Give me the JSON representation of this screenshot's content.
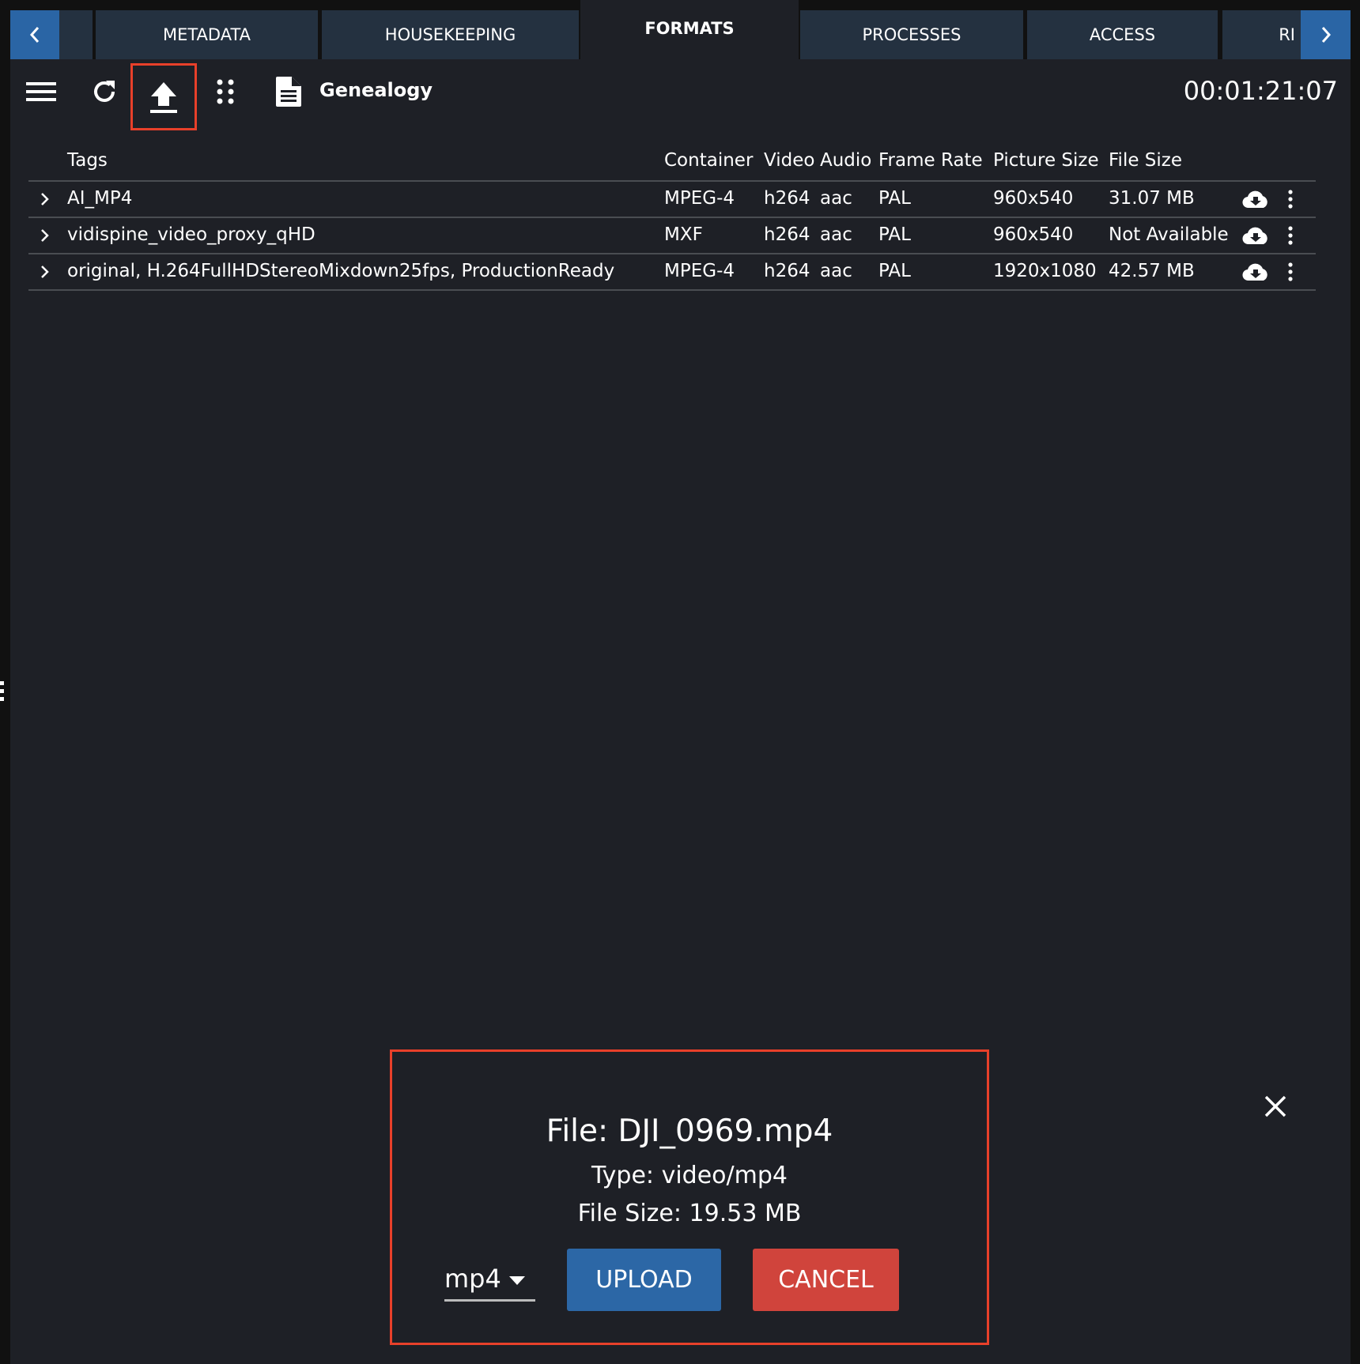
{
  "tabs": [
    {
      "label": "METADATA",
      "active": false
    },
    {
      "label": "HOUSEKEEPING",
      "active": false
    },
    {
      "label": "FORMATS",
      "active": true
    },
    {
      "label": "PROCESSES",
      "active": false
    },
    {
      "label": "ACCESS",
      "active": false
    },
    {
      "label": "RI",
      "active": false
    }
  ],
  "toolbar": {
    "icons": [
      "menu-icon",
      "refresh-icon",
      "upload-icon",
      "grid-dots-icon",
      "document-icon"
    ],
    "genealogy_label": "Genealogy",
    "timecode": "00:01:21:07"
  },
  "table": {
    "columns": [
      "Tags",
      "Container",
      "Video",
      "Audio",
      "Frame Rate",
      "Picture Size",
      "File Size"
    ],
    "rows": [
      {
        "tags": "AI_MP4",
        "container": "MPEG-4",
        "video": "h264",
        "audio": "aac",
        "frame_rate": "PAL",
        "picture_size": "960x540",
        "file_size": "31.07 MB"
      },
      {
        "tags": "vidispine_video_proxy_qHD",
        "container": "MXF",
        "video": "h264",
        "audio": "aac",
        "frame_rate": "PAL",
        "picture_size": "960x540",
        "file_size": "Not Available"
      },
      {
        "tags": "original, H.264FullHDStereoMixdown25fps, ProductionReady",
        "container": "MPEG-4",
        "video": "h264",
        "audio": "aac",
        "frame_rate": "PAL",
        "picture_size": "1920x1080",
        "file_size": "42.57 MB"
      }
    ]
  },
  "upload_dialog": {
    "file": "File: DJI_0969.mp4",
    "type": "Type: video/mp4",
    "size": "File Size: 19.53 MB",
    "format_select": "mp4",
    "upload_label": "UPLOAD",
    "cancel_label": "CANCEL"
  },
  "colors": {
    "accent": "#2a65a5",
    "cancel": "#d0443c",
    "highlight": "#e8402a",
    "background": "#1e2026",
    "tab": "#243140"
  }
}
